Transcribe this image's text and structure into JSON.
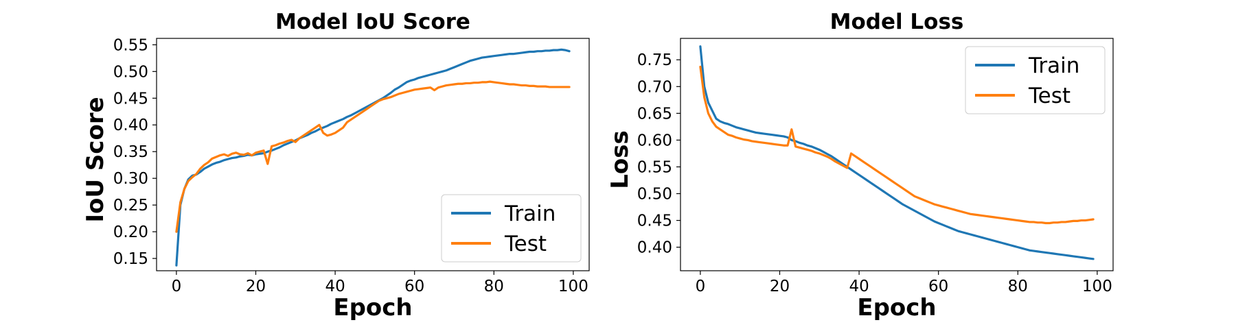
{
  "colors": {
    "train": "#1f77b4",
    "test": "#ff7f0e"
  },
  "chart_data": [
    {
      "type": "line",
      "title": "Model IoU Score",
      "xlabel": "Epoch",
      "ylabel": "IoU Score",
      "xlim": [
        -5,
        104
      ],
      "ylim": [
        0.127,
        0.562
      ],
      "xticks": [
        0,
        20,
        40,
        60,
        80,
        100
      ],
      "yticks": [
        0.15,
        0.2,
        0.25,
        0.3,
        0.35,
        0.4,
        0.45,
        0.5,
        0.55
      ],
      "ytick_labels": [
        "0.15",
        "0.20",
        "0.25",
        "0.30",
        "0.35",
        "0.40",
        "0.45",
        "0.50",
        "0.55"
      ],
      "legend": "lower-right",
      "grid": false,
      "series": [
        {
          "name": "Train",
          "values": [
            0.137,
            0.25,
            0.28,
            0.298,
            0.305,
            0.307,
            0.312,
            0.318,
            0.322,
            0.326,
            0.329,
            0.331,
            0.334,
            0.336,
            0.338,
            0.339,
            0.341,
            0.342,
            0.344,
            0.343,
            0.345,
            0.346,
            0.347,
            0.35,
            0.352,
            0.355,
            0.358,
            0.362,
            0.365,
            0.368,
            0.371,
            0.375,
            0.378,
            0.381,
            0.385,
            0.388,
            0.392,
            0.395,
            0.398,
            0.402,
            0.405,
            0.408,
            0.411,
            0.415,
            0.418,
            0.422,
            0.426,
            0.43,
            0.434,
            0.438,
            0.442,
            0.446,
            0.45,
            0.455,
            0.46,
            0.466,
            0.47,
            0.475,
            0.48,
            0.483,
            0.485,
            0.488,
            0.49,
            0.492,
            0.494,
            0.496,
            0.498,
            0.5,
            0.502,
            0.505,
            0.508,
            0.511,
            0.514,
            0.517,
            0.52,
            0.522,
            0.524,
            0.526,
            0.527,
            0.528,
            0.529,
            0.53,
            0.531,
            0.532,
            0.533,
            0.533,
            0.534,
            0.535,
            0.536,
            0.537,
            0.537,
            0.538,
            0.538,
            0.539,
            0.539,
            0.54,
            0.54,
            0.541,
            0.54,
            0.538
          ]
        },
        {
          "name": "Test",
          "values": [
            0.2,
            0.255,
            0.28,
            0.295,
            0.302,
            0.308,
            0.318,
            0.325,
            0.33,
            0.337,
            0.34,
            0.343,
            0.345,
            0.342,
            0.346,
            0.348,
            0.345,
            0.344,
            0.347,
            0.343,
            0.348,
            0.35,
            0.352,
            0.327,
            0.36,
            0.362,
            0.365,
            0.367,
            0.37,
            0.372,
            0.368,
            0.375,
            0.38,
            0.385,
            0.39,
            0.395,
            0.4,
            0.385,
            0.38,
            0.382,
            0.385,
            0.39,
            0.395,
            0.405,
            0.41,
            0.415,
            0.42,
            0.425,
            0.43,
            0.435,
            0.44,
            0.445,
            0.448,
            0.45,
            0.452,
            0.455,
            0.458,
            0.46,
            0.462,
            0.464,
            0.466,
            0.467,
            0.468,
            0.469,
            0.47,
            0.465,
            0.47,
            0.472,
            0.474,
            0.475,
            0.476,
            0.477,
            0.477,
            0.478,
            0.478,
            0.479,
            0.479,
            0.48,
            0.48,
            0.481,
            0.48,
            0.479,
            0.478,
            0.477,
            0.476,
            0.476,
            0.475,
            0.474,
            0.474,
            0.473,
            0.473,
            0.472,
            0.472,
            0.472,
            0.471,
            0.471,
            0.471,
            0.471,
            0.471,
            0.471
          ]
        }
      ]
    },
    {
      "type": "line",
      "title": "Model Loss",
      "xlabel": "Epoch",
      "ylabel": "Loss",
      "xlim": [
        -5,
        104
      ],
      "ylim": [
        0.356,
        0.79
      ],
      "xticks": [
        0,
        20,
        40,
        60,
        80,
        100
      ],
      "yticks": [
        0.4,
        0.45,
        0.5,
        0.55,
        0.6,
        0.65,
        0.7,
        0.75
      ],
      "ytick_labels": [
        "0.40",
        "0.45",
        "0.50",
        "0.55",
        "0.60",
        "0.65",
        "0.70",
        "0.75"
      ],
      "legend": "upper-right",
      "grid": false,
      "series": [
        {
          "name": "Train",
          "values": [
            0.775,
            0.7,
            0.67,
            0.655,
            0.64,
            0.635,
            0.632,
            0.63,
            0.627,
            0.624,
            0.622,
            0.62,
            0.618,
            0.616,
            0.614,
            0.613,
            0.612,
            0.611,
            0.61,
            0.609,
            0.608,
            0.607,
            0.605,
            0.6,
            0.598,
            0.595,
            0.593,
            0.59,
            0.588,
            0.585,
            0.582,
            0.578,
            0.574,
            0.57,
            0.565,
            0.56,
            0.555,
            0.55,
            0.545,
            0.54,
            0.535,
            0.53,
            0.525,
            0.52,
            0.515,
            0.51,
            0.505,
            0.5,
            0.495,
            0.49,
            0.485,
            0.48,
            0.476,
            0.472,
            0.468,
            0.464,
            0.46,
            0.456,
            0.452,
            0.448,
            0.445,
            0.442,
            0.439,
            0.436,
            0.433,
            0.43,
            0.428,
            0.426,
            0.424,
            0.422,
            0.42,
            0.418,
            0.416,
            0.414,
            0.412,
            0.41,
            0.408,
            0.406,
            0.404,
            0.402,
            0.4,
            0.398,
            0.396,
            0.394,
            0.393,
            0.392,
            0.391,
            0.39,
            0.389,
            0.388,
            0.387,
            0.386,
            0.385,
            0.384,
            0.383,
            0.382,
            0.381,
            0.38,
            0.379,
            0.378
          ]
        },
        {
          "name": "Test",
          "values": [
            0.737,
            0.68,
            0.65,
            0.635,
            0.625,
            0.62,
            0.615,
            0.61,
            0.608,
            0.605,
            0.603,
            0.601,
            0.6,
            0.598,
            0.597,
            0.596,
            0.595,
            0.594,
            0.593,
            0.592,
            0.591,
            0.59,
            0.59,
            0.62,
            0.588,
            0.586,
            0.584,
            0.582,
            0.58,
            0.577,
            0.575,
            0.572,
            0.569,
            0.565,
            0.56,
            0.556,
            0.552,
            0.548,
            0.575,
            0.57,
            0.565,
            0.56,
            0.555,
            0.55,
            0.545,
            0.54,
            0.535,
            0.53,
            0.525,
            0.52,
            0.515,
            0.51,
            0.505,
            0.5,
            0.495,
            0.492,
            0.489,
            0.486,
            0.483,
            0.48,
            0.478,
            0.476,
            0.474,
            0.472,
            0.47,
            0.468,
            0.466,
            0.464,
            0.462,
            0.461,
            0.46,
            0.459,
            0.458,
            0.457,
            0.456,
            0.455,
            0.454,
            0.453,
            0.452,
            0.451,
            0.45,
            0.449,
            0.448,
            0.447,
            0.447,
            0.446,
            0.446,
            0.445,
            0.445,
            0.446,
            0.446,
            0.447,
            0.447,
            0.448,
            0.449,
            0.449,
            0.45,
            0.45,
            0.451,
            0.452
          ]
        }
      ]
    }
  ]
}
